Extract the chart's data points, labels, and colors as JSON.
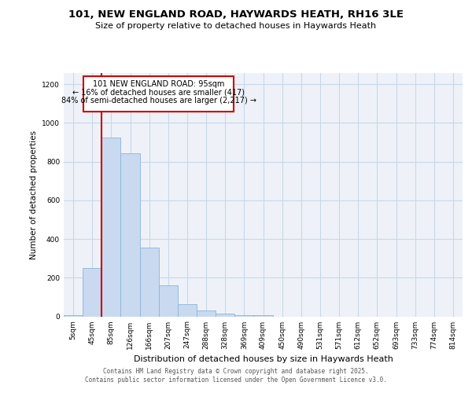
{
  "title1": "101, NEW ENGLAND ROAD, HAYWARDS HEATH, RH16 3LE",
  "title2": "Size of property relative to detached houses in Haywards Heath",
  "xlabel": "Distribution of detached houses by size in Haywards Heath",
  "ylabel": "Number of detached properties",
  "bar_labels": [
    "5sqm",
    "45sqm",
    "85sqm",
    "126sqm",
    "166sqm",
    "207sqm",
    "247sqm",
    "288sqm",
    "328sqm",
    "369sqm",
    "409sqm",
    "450sqm",
    "490sqm",
    "531sqm",
    "571sqm",
    "612sqm",
    "652sqm",
    "693sqm",
    "733sqm",
    "774sqm",
    "814sqm"
  ],
  "bar_values": [
    5,
    250,
    925,
    845,
    355,
    160,
    65,
    30,
    15,
    8,
    5,
    0,
    0,
    0,
    0,
    0,
    0,
    0,
    0,
    0,
    0
  ],
  "bar_color": "#c9d9f0",
  "bar_edgecolor": "#8ab4d8",
  "grid_color": "#c8d8e8",
  "bg_color": "#ffffff",
  "plot_bg_color": "#eef2f8",
  "red_line_color": "#cc0000",
  "annotation_title": "101 NEW ENGLAND ROAD: 95sqm",
  "annotation_line1": "← 16% of detached houses are smaller (417)",
  "annotation_line2": "84% of semi-detached houses are larger (2,217) →",
  "annotation_box_edgecolor": "#cc0000",
  "ylim": [
    0,
    1260
  ],
  "yticks": [
    0,
    200,
    400,
    600,
    800,
    1000,
    1200
  ],
  "footer1": "Contains HM Land Registry data © Crown copyright and database right 2025.",
  "footer2": "Contains public sector information licensed under the Open Government Licence v3.0."
}
